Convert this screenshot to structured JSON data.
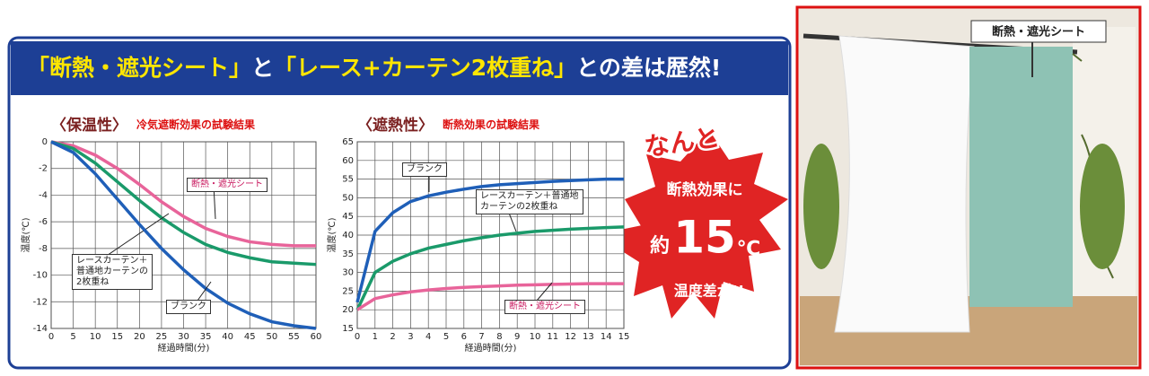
{
  "banner": [
    "「断熱・遮光シート」",
    "と",
    "「レース+カーテン2枚重ね」",
    "との差は歴然!"
  ],
  "chart_data": [
    {
      "type": "line",
      "title": "〈保温性〉",
      "subtitle": "冷気遮断効果の試験結果",
      "y_label": "温度(℃)",
      "x_label": "経過時間(分)",
      "x": [
        0,
        5,
        10,
        15,
        20,
        25,
        30,
        35,
        40,
        45,
        50,
        55,
        60
      ],
      "xlim": [
        0,
        60
      ],
      "xticks": [
        0,
        5,
        10,
        15,
        20,
        25,
        30,
        35,
        40,
        45,
        50,
        55,
        60
      ],
      "ylim": [
        -14,
        0
      ],
      "yticks": [
        0,
        -2,
        -4,
        -6,
        -8,
        -10,
        -12,
        -14
      ],
      "grid": true,
      "series": [
        {
          "name": "断熱・遮光シート",
          "color": "#e8649a",
          "values": [
            0,
            -0.3,
            -1,
            -2,
            -3.2,
            -4.5,
            -5.6,
            -6.5,
            -7.1,
            -7.5,
            -7.7,
            -7.8,
            -7.8
          ]
        },
        {
          "name": "レースカーテン＋\n普通地カーテンの\n2枚重ね",
          "color": "#1a9a6a",
          "values": [
            0,
            -0.5,
            -1.6,
            -3,
            -4.4,
            -5.7,
            -6.8,
            -7.7,
            -8.3,
            -8.7,
            -9,
            -9.1,
            -9.2
          ]
        },
        {
          "name": "ブランク",
          "color": "#1f5fb8",
          "values": [
            0,
            -0.8,
            -2.4,
            -4.3,
            -6.2,
            -8,
            -9.6,
            -11,
            -12.1,
            -12.9,
            -13.5,
            -13.8,
            -14
          ]
        }
      ]
    },
    {
      "type": "line",
      "title": "〈遮熱性〉",
      "subtitle": "断熱効果の試験結果",
      "y_label": "温度(℃)",
      "x_label": "経過時間(分)",
      "x": [
        0,
        1,
        2,
        3,
        4,
        5,
        6,
        7,
        8,
        9,
        10,
        11,
        12,
        13,
        14,
        15
      ],
      "xlim": [
        0,
        15
      ],
      "xticks": [
        0,
        1,
        2,
        3,
        4,
        5,
        6,
        7,
        8,
        9,
        10,
        11,
        12,
        13,
        14,
        15
      ],
      "ylim": [
        15,
        65
      ],
      "yticks": [
        15,
        20,
        25,
        30,
        35,
        40,
        45,
        50,
        55,
        60,
        65
      ],
      "grid": true,
      "series": [
        {
          "name": "ブランク",
          "color": "#1f5fb8",
          "values": [
            22,
            41,
            46,
            49,
            50.5,
            51.5,
            52.3,
            53,
            53.5,
            53.8,
            54.1,
            54.4,
            54.6,
            54.8,
            55,
            55
          ]
        },
        {
          "name": "レースカーテン＋普通地\nカーテンの2枚重ね",
          "color": "#1a9a6a",
          "values": [
            20,
            30,
            33,
            35,
            36.5,
            37.5,
            38.5,
            39.3,
            40,
            40.5,
            41,
            41.3,
            41.6,
            41.8,
            42,
            42.2
          ]
        },
        {
          "name": "断熱・遮光シート",
          "color": "#e8649a",
          "values": [
            20,
            23,
            24,
            24.8,
            25.3,
            25.7,
            26,
            26.2,
            26.4,
            26.6,
            26.7,
            26.8,
            26.9,
            27,
            27,
            27
          ]
        }
      ]
    }
  ],
  "callout": {
    "intro": "なんと",
    "line1": "断熱効果に",
    "prefix": "約",
    "number": 15,
    "unit": "℃",
    "line2": "温度差が!!"
  },
  "photo_label": "断熱・遮光シート"
}
